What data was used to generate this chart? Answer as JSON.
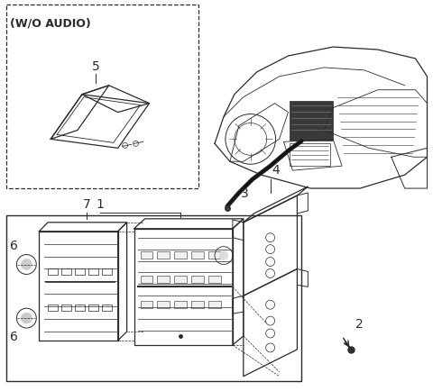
{
  "bg_color": "#ffffff",
  "line_color": "#2a2a2a",
  "label_wo_audio": "(W/O AUDIO)",
  "font_size_labels": 9,
  "font_size_wo": 8,
  "fig_w": 4.8,
  "fig_h": 4.35,
  "dpi": 100
}
